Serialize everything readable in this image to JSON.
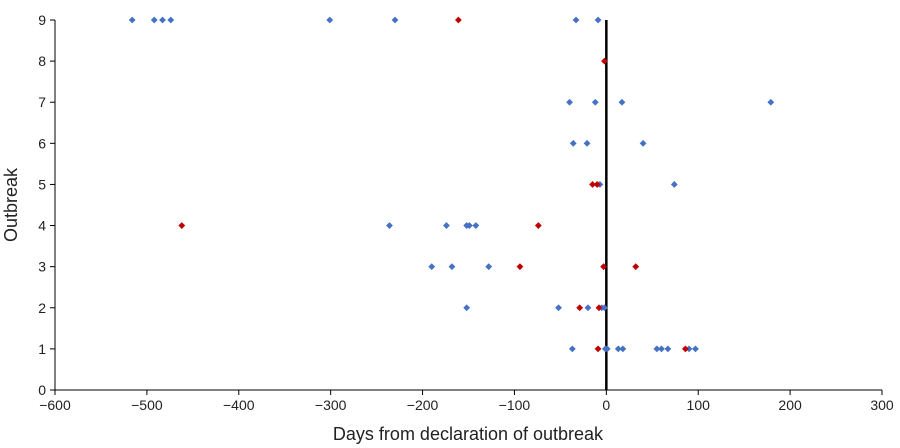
{
  "chart_data": {
    "type": "scatter",
    "title": "",
    "xlabel": "Days from declaration of outbreak",
    "ylabel": "Outbreak",
    "xlim": [
      -600,
      300
    ],
    "ylim": [
      0,
      9
    ],
    "x_ticks": [
      -600,
      -500,
      -400,
      -300,
      -200,
      -100,
      0,
      100,
      200,
      300
    ],
    "y_ticks": [
      0,
      1,
      2,
      3,
      4,
      5,
      6,
      7,
      8,
      9
    ],
    "grid": false,
    "legend": "none",
    "reference_line_x": 0,
    "colors": {
      "blue": "#4472C4",
      "red": "#C00000",
      "axis": "#000000"
    },
    "series": [
      {
        "color": "#4472C4",
        "points": [
          [
            -516,
            9
          ],
          [
            -492,
            9
          ],
          [
            -483,
            9
          ],
          [
            -474,
            9
          ],
          [
            -301,
            9
          ],
          [
            -230,
            9
          ],
          [
            -33,
            9
          ],
          [
            -9,
            9
          ],
          [
            -40,
            7
          ],
          [
            -12,
            7
          ],
          [
            17,
            7
          ],
          [
            179,
            7
          ],
          [
            -36,
            6
          ],
          [
            -21,
            6
          ],
          [
            40,
            6
          ],
          [
            -7,
            5
          ],
          [
            74,
            5
          ],
          [
            -236,
            4
          ],
          [
            -174,
            4
          ],
          [
            -152,
            4
          ],
          [
            -149,
            4
          ],
          [
            -142,
            4
          ],
          [
            -190,
            3
          ],
          [
            -168,
            3
          ],
          [
            -128,
            3
          ],
          [
            -152,
            2
          ],
          [
            -52,
            2
          ],
          [
            -20,
            2
          ],
          [
            -5,
            2
          ],
          [
            -2,
            2
          ],
          [
            -37,
            1
          ],
          [
            -1,
            1
          ],
          [
            1,
            1
          ],
          [
            13,
            1
          ],
          [
            18,
            1
          ],
          [
            55,
            1
          ],
          [
            60,
            1
          ],
          [
            67,
            1
          ],
          [
            90,
            1
          ],
          [
            97,
            1
          ]
        ]
      },
      {
        "color": "#C00000",
        "points": [
          [
            -161,
            9
          ],
          [
            -2,
            8
          ],
          [
            -15,
            5
          ],
          [
            -10,
            5
          ],
          [
            -462,
            4
          ],
          [
            -74,
            4
          ],
          [
            -94,
            3
          ],
          [
            -3,
            3
          ],
          [
            32,
            3
          ],
          [
            -29,
            2
          ],
          [
            -8,
            2
          ],
          [
            -9,
            1
          ],
          [
            86,
            1
          ]
        ]
      }
    ]
  }
}
